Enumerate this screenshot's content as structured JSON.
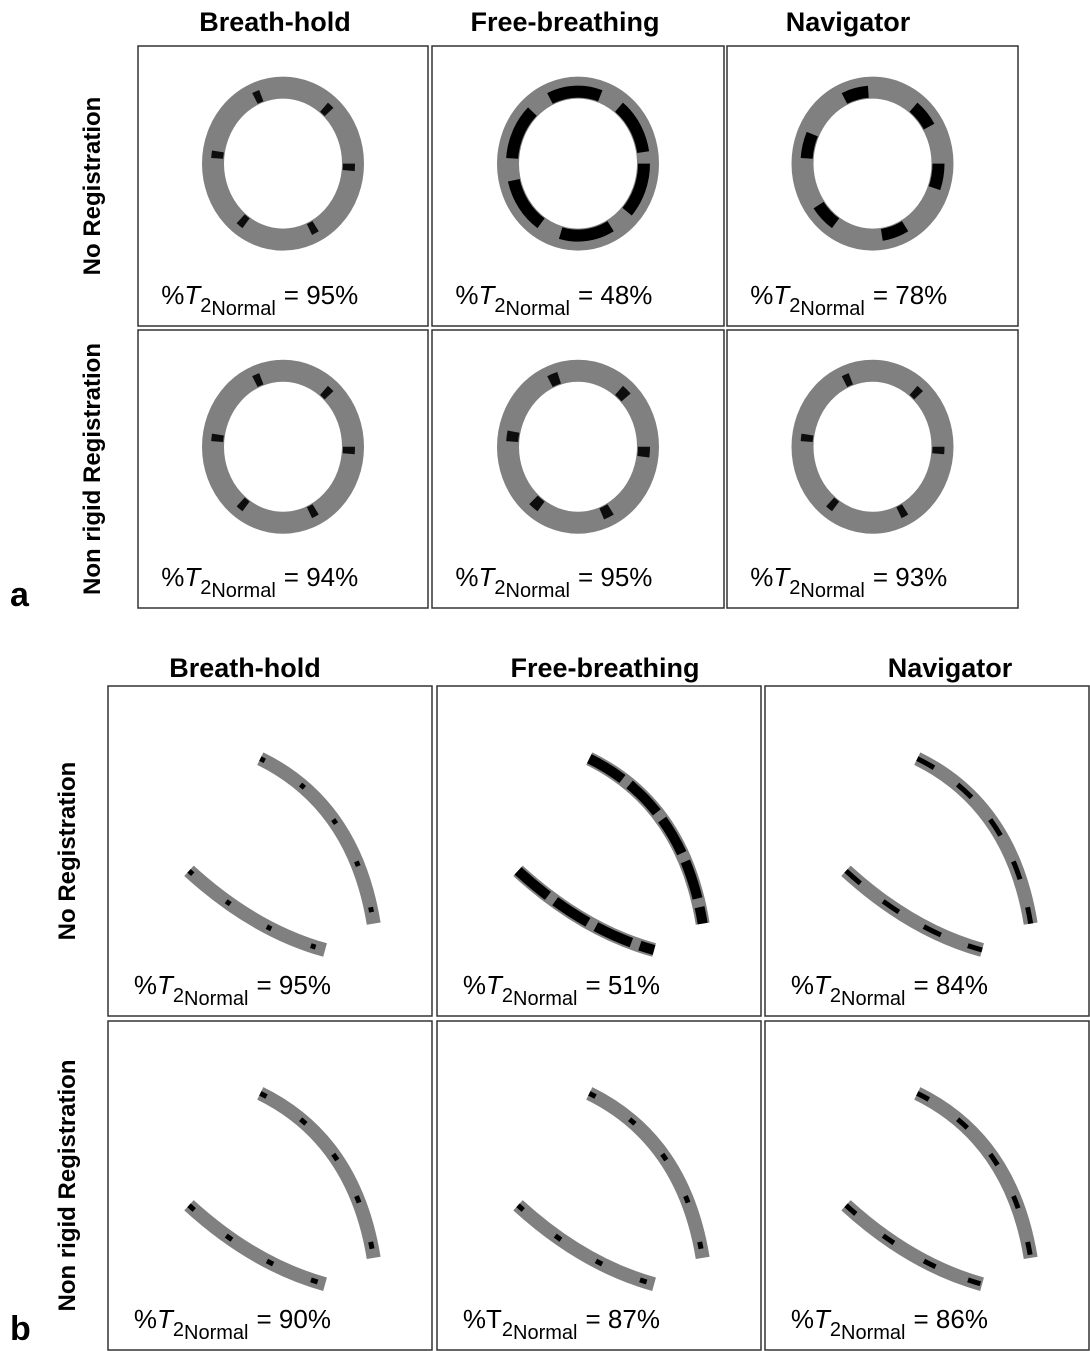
{
  "panels": [
    {
      "label": "a",
      "columns": [
        "Breath-hold",
        "Free-breathing",
        "Navigator"
      ],
      "rows": [
        "No Registration",
        "Non rigid Registration"
      ],
      "cells": [
        [
          {
            "prefix": "%",
            "symbol": "T",
            "italic": true,
            "sub": "2",
            "subsub": "Normal",
            "suffix": "= 95%"
          },
          {
            "prefix": "%",
            "symbol": "T",
            "italic": true,
            "sub": "2",
            "subsub": "Normal",
            "suffix": "= 48%"
          },
          {
            "prefix": "%",
            "symbol": "T",
            "italic": true,
            "sub": "2",
            "subsub": "Normal",
            "suffix": "= 78%"
          }
        ],
        [
          {
            "prefix": "%",
            "symbol": "T",
            "italic": true,
            "sub": "2",
            "subsub": "Normal",
            "suffix": "= 94%"
          },
          {
            "prefix": "%",
            "symbol": "T",
            "italic": true,
            "sub": "2",
            "subsub": "Normal",
            "suffix": "= 95%"
          },
          {
            "prefix": "%",
            "symbol": "T",
            "italic": true,
            "sub": "2",
            "subsub": "Normal",
            "suffix": "= 93%"
          }
        ]
      ]
    },
    {
      "label": "b",
      "columns": [
        "Breath-hold",
        "Free-breathing",
        "Navigator"
      ],
      "rows": [
        "No Registration",
        "Non rigid Registration"
      ],
      "cells": [
        [
          {
            "prefix": "%",
            "symbol": "T",
            "italic": true,
            "sub": "2",
            "subsub": "Normal",
            "suffix": "= 95%"
          },
          {
            "prefix": "%",
            "symbol": "T",
            "italic": true,
            "sub": "2",
            "subsub": "Normal",
            "suffix": "= 51%"
          },
          {
            "prefix": "%",
            "symbol": "T",
            "italic": true,
            "sub": "2",
            "subsub": "Normal",
            "suffix": "= 84%"
          }
        ],
        [
          {
            "prefix": "%",
            "symbol": "T",
            "italic": true,
            "sub": "2",
            "subsub": "Normal",
            "suffix": "= 90%"
          },
          {
            "prefix": "%",
            "symbol": "T",
            "italic": false,
            "sub": "2",
            "subsub": "Normal",
            "suffix": "= 87%"
          },
          {
            "prefix": "%",
            "symbol": "T",
            "italic": true,
            "sub": "2",
            "subsub": "Normal",
            "suffix": "= 86%"
          }
        ]
      ]
    }
  ]
}
